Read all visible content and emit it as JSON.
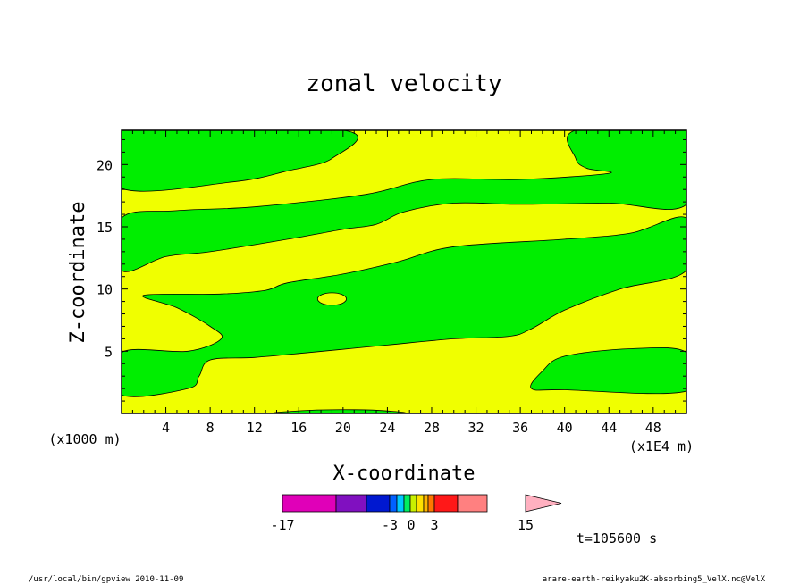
{
  "chart_data": {
    "type": "heatmap",
    "title": "zonal velocity",
    "xlabel": "X-coordinate",
    "ylabel": "Z-coordinate",
    "x_unit_left": "(x1000 m)",
    "x_unit_right": "(x1E4 m)",
    "xlim": [
      0,
      51
    ],
    "ylim": [
      0,
      22.75
    ],
    "x_ticks": [
      4,
      8,
      12,
      16,
      20,
      24,
      28,
      32,
      36,
      40,
      44,
      48
    ],
    "y_ticks": [
      5,
      10,
      15,
      20
    ],
    "colorbar": {
      "tick_labels": [
        "-17",
        "-3",
        "0",
        "3",
        "15"
      ],
      "colors": [
        "#e000b8",
        "#8010c0",
        "#0018d0",
        "#0060ff",
        "#00c8ff",
        "#00ee60",
        "#c8f000",
        "#ffe000",
        "#ffb400",
        "#ff7800",
        "#ff1818",
        "#ff8080",
        "#ffb0c0"
      ]
    },
    "fill_colors": {
      "positive": "#f0ff00",
      "near_zero": "#00ee00"
    },
    "green_regions": [
      {
        "label": "top-left",
        "points": [
          [
            0,
            22.75
          ],
          [
            20,
            22.75
          ],
          [
            19,
            20.5
          ],
          [
            15,
            19.5
          ],
          [
            10,
            18.6
          ],
          [
            0,
            18.1
          ]
        ]
      },
      {
        "label": "top-right",
        "points": [
          [
            41,
            22.75
          ],
          [
            51,
            22.75
          ],
          [
            51,
            16.8
          ],
          [
            44,
            16.9
          ],
          [
            36,
            16.8
          ],
          [
            30,
            16.9
          ],
          [
            25.5,
            16.2
          ],
          [
            23,
            15.2
          ],
          [
            20,
            14.8
          ],
          [
            15,
            14
          ],
          [
            8,
            13
          ],
          [
            4,
            12.6
          ],
          [
            0,
            11.5
          ],
          [
            0,
            15.7
          ],
          [
            5,
            16.3
          ],
          [
            12,
            16.6
          ],
          [
            22,
            17.6
          ],
          [
            28,
            18.8
          ],
          [
            36,
            18.8
          ],
          [
            44,
            19.3
          ],
          [
            42,
            19.7
          ],
          [
            41,
            20.5
          ]
        ]
      },
      {
        "label": "middle",
        "points": [
          [
            2,
            9.5
          ],
          [
            9,
            9.6
          ],
          [
            13,
            9.9
          ],
          [
            15,
            10.5
          ],
          [
            20,
            11.2
          ],
          [
            25,
            12.2
          ],
          [
            30,
            13.4
          ],
          [
            40,
            14
          ],
          [
            46,
            14.5
          ],
          [
            51,
            15.7
          ],
          [
            51,
            11.5
          ],
          [
            45,
            10
          ],
          [
            40,
            8.3
          ],
          [
            37,
            6.8
          ],
          [
            35,
            6.2
          ],
          [
            30,
            6
          ],
          [
            24,
            5.5
          ],
          [
            17,
            4.9
          ],
          [
            12,
            4.5
          ],
          [
            8,
            4.3
          ],
          [
            7,
            3
          ],
          [
            6,
            2
          ],
          [
            0,
            1.5
          ],
          [
            0,
            4.9
          ],
          [
            6,
            5
          ],
          [
            9,
            6
          ],
          [
            8,
            7
          ],
          [
            5,
            8.5
          ]
        ]
      },
      {
        "label": "lower-right",
        "points": [
          [
            37,
            2
          ],
          [
            40,
            1.9
          ],
          [
            51,
            1.8
          ],
          [
            51,
            4.9
          ],
          [
            46,
            5.2
          ],
          [
            40,
            4.6
          ],
          [
            38,
            3.4
          ]
        ]
      },
      {
        "label": "bottom-sliver",
        "points": [
          [
            14,
            0
          ],
          [
            17,
            0.25
          ],
          [
            21,
            0.3
          ],
          [
            24,
            0.2
          ],
          [
            25,
            0
          ]
        ]
      }
    ],
    "yellow_islands": [
      {
        "label": "blob",
        "cx": 19,
        "cy": 9.2,
        "rx": 1.3,
        "ry": 0.5
      }
    ]
  },
  "annotations": {
    "time": "t=105600 s",
    "footer_left": "/usr/local/bin/gpview  2010-11-09",
    "footer_right": "arare-earth-reikyaku2K-absorbing5_VelX.nc@VelX"
  }
}
